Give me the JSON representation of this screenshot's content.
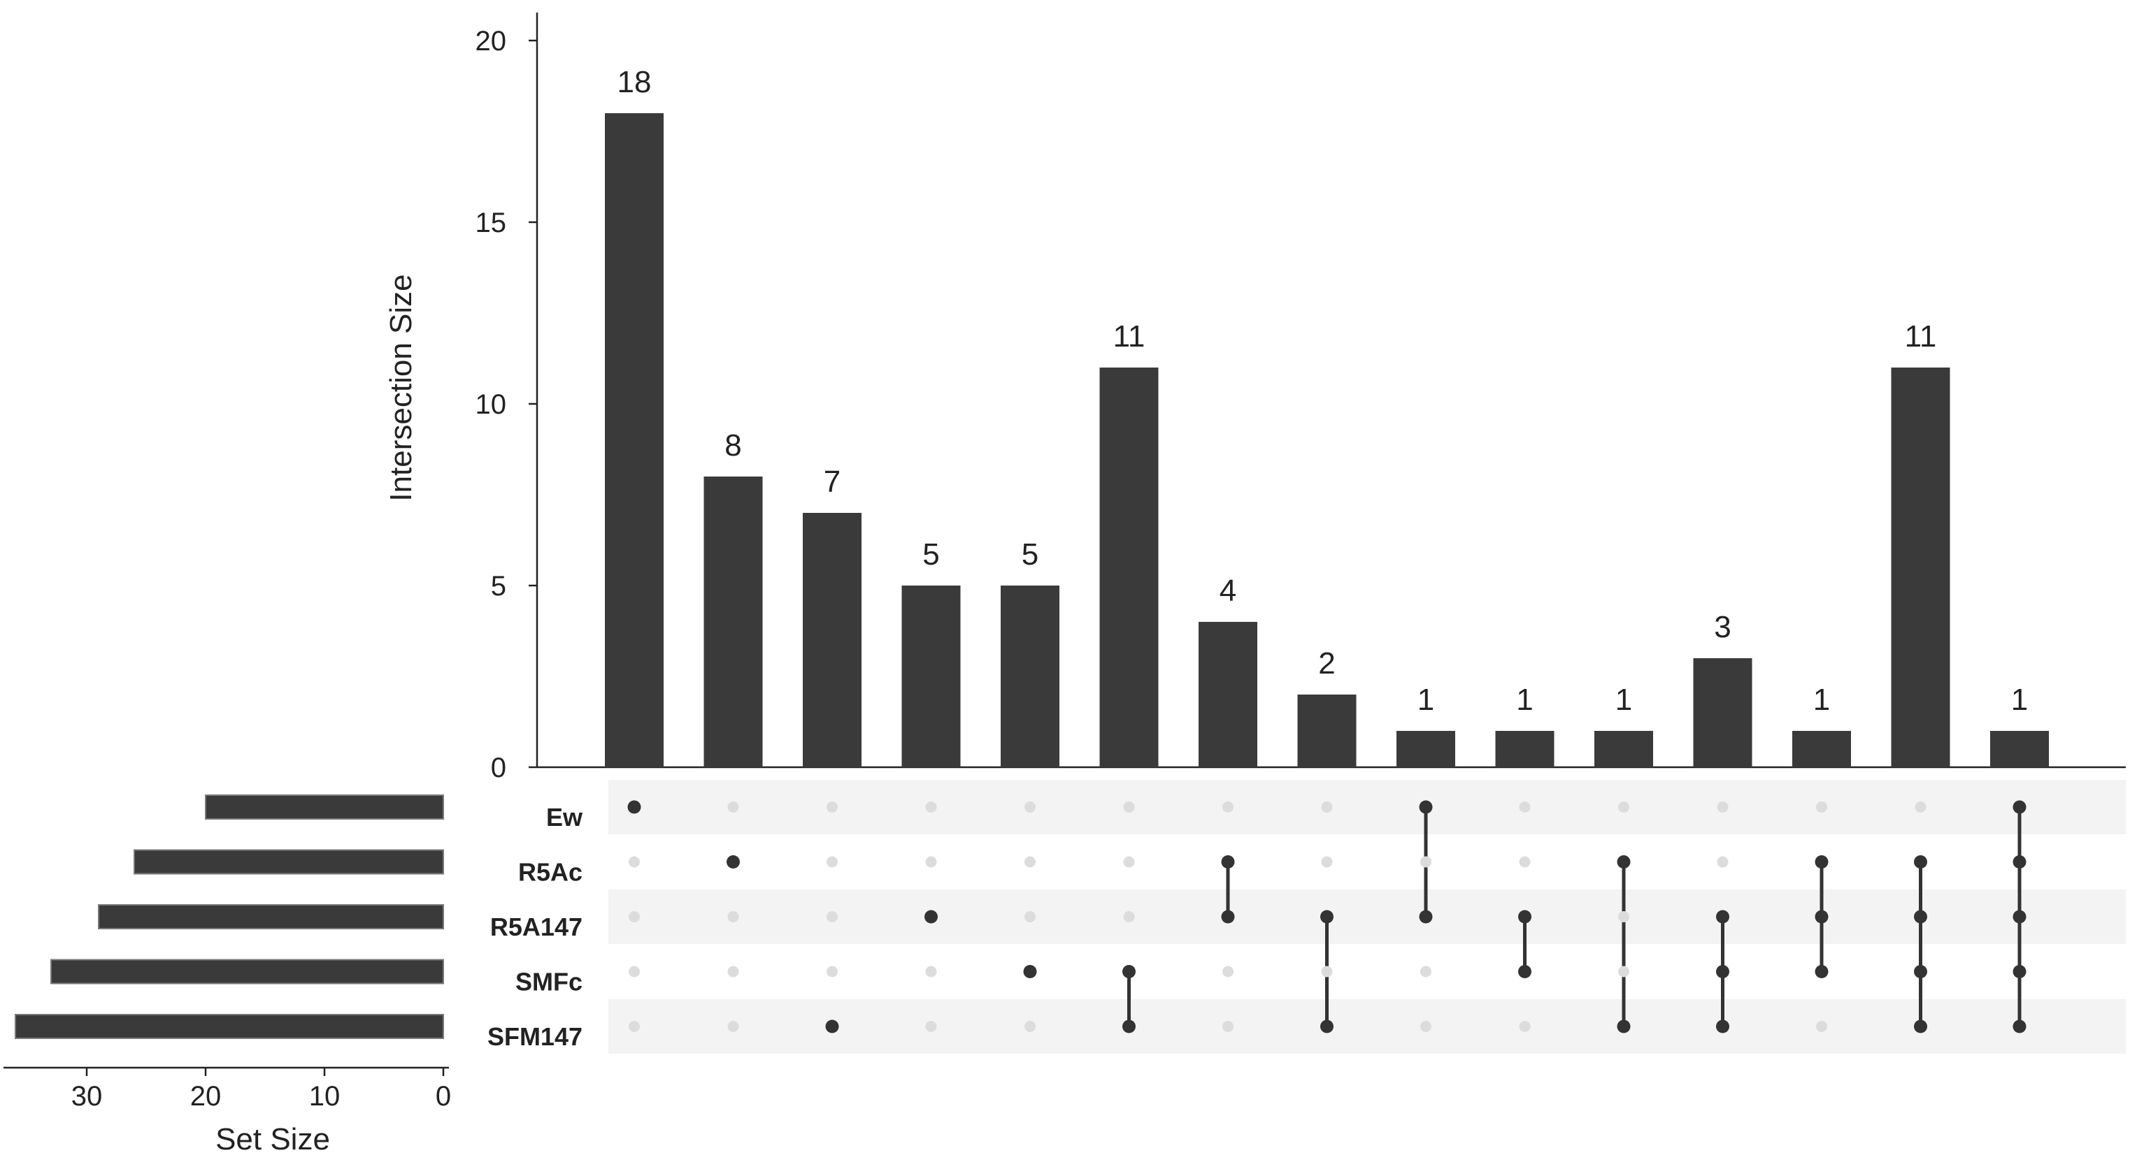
{
  "chart_data": {
    "type": "upset",
    "ylabel": "Intersection Size",
    "y_ticks": [
      0,
      5,
      10,
      15,
      20
    ],
    "ylim": [
      0,
      20
    ],
    "set_size_label": "Set Size",
    "set_size_ticks": [
      30,
      20,
      10,
      0
    ],
    "set_size_xlim": [
      37,
      0
    ],
    "sets": [
      {
        "name": "Ew",
        "size": 20
      },
      {
        "name": "R5Ac",
        "size": 26
      },
      {
        "name": "R5A147",
        "size": 29
      },
      {
        "name": "SMFc",
        "size": 33
      },
      {
        "name": "SFM147",
        "size": 36
      }
    ],
    "intersections": [
      {
        "sets": [
          "Ew"
        ],
        "size": 18
      },
      {
        "sets": [
          "R5Ac"
        ],
        "size": 8
      },
      {
        "sets": [
          "SFM147"
        ],
        "size": 7
      },
      {
        "sets": [
          "R5A147"
        ],
        "size": 5
      },
      {
        "sets": [
          "SMFc"
        ],
        "size": 5
      },
      {
        "sets": [
          "SMFc",
          "SFM147"
        ],
        "size": 11
      },
      {
        "sets": [
          "R5Ac",
          "R5A147"
        ],
        "size": 4
      },
      {
        "sets": [
          "R5A147",
          "SFM147"
        ],
        "size": 2
      },
      {
        "sets": [
          "Ew",
          "R5A147"
        ],
        "size": 1
      },
      {
        "sets": [
          "R5A147",
          "SMFc"
        ],
        "size": 1
      },
      {
        "sets": [
          "R5Ac",
          "SFM147"
        ],
        "size": 1
      },
      {
        "sets": [
          "R5A147",
          "SMFc",
          "SFM147"
        ],
        "size": 3
      },
      {
        "sets": [
          "R5Ac",
          "R5A147",
          "SMFc"
        ],
        "size": 1
      },
      {
        "sets": [
          "R5Ac",
          "R5A147",
          "SMFc",
          "SFM147"
        ],
        "size": 11
      },
      {
        "sets": [
          "Ew",
          "R5Ac",
          "R5A147",
          "SMFc",
          "SFM147"
        ],
        "size": 1
      }
    ],
    "colors": {
      "bar": "#3a3a3a",
      "dot_active": "#333333",
      "dot_inactive": "#dcdcdc",
      "row_stripe": "#f3f3f3",
      "axis": "#222222"
    }
  }
}
